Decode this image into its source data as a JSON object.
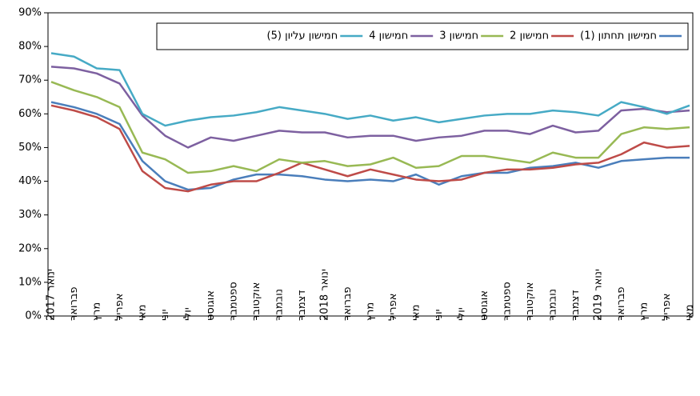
{
  "chart_data": {
    "type": "line",
    "categories": [
      "ינואר 2017",
      "פברואר",
      "מרץ",
      "אפריל",
      "מאי",
      "יוני",
      "יולי",
      "אוגוסט",
      "ספטמבר",
      "אוקטובר",
      "נובמבר",
      "דצמבר",
      "ינואר 2018",
      "פברואר",
      "מרץ",
      "אפריל",
      "מאי",
      "יוני",
      "יולי",
      "אוגוסט",
      "ספטמבר",
      "אוקטובר",
      "נובמבר",
      "דצמבר",
      "ינואר 2019",
      "פברואר",
      "מרץ",
      "אפריל",
      "מאי"
    ],
    "series": [
      {
        "name": "חמישון תחתון (1)",
        "color": "#4a7ebb",
        "values": [
          63.5,
          62,
          60,
          57,
          46,
          40,
          37.5,
          38,
          40.5,
          42,
          42,
          41.5,
          40.5,
          40,
          40.5,
          40,
          42,
          39,
          41.5,
          42.5,
          42.5,
          44,
          44.5,
          45.5,
          44,
          46,
          46.5,
          47,
          47
        ]
      },
      {
        "name": "חמישון 2",
        "color": "#be4b48",
        "values": [
          62.5,
          61,
          59,
          55.5,
          43,
          38,
          37,
          39,
          40,
          40,
          42.5,
          45.5,
          43.5,
          41.5,
          43.5,
          42,
          40.5,
          40,
          40.5,
          42.5,
          43.5,
          43.5,
          44,
          45,
          45.5,
          48,
          51.5,
          50,
          50.5
        ]
      },
      {
        "name": "חמישון 3",
        "color": "#98b954",
        "values": [
          69.5,
          67,
          65,
          62,
          48.5,
          46.5,
          42.5,
          43,
          44.5,
          43,
          46.5,
          45.5,
          46,
          44.5,
          45,
          47,
          44,
          44.5,
          47.5,
          47.5,
          46.5,
          45.5,
          48.5,
          47,
          47,
          54,
          56,
          55.5,
          56
        ]
      },
      {
        "name": "חמישון 4",
        "color": "#7d60a0",
        "values": [
          74,
          73.5,
          72,
          69,
          59.5,
          53.5,
          50,
          53,
          52,
          53.5,
          55,
          54.5,
          54.5,
          53,
          53.5,
          53.5,
          52,
          53,
          53.5,
          55,
          55,
          54,
          56.5,
          54.5,
          55,
          61,
          61.5,
          60.5,
          61
        ]
      },
      {
        "name": "חמישון עליון (5)",
        "color": "#46aac5",
        "values": [
          78,
          77,
          73.5,
          73,
          60,
          56.5,
          58,
          59,
          59.5,
          60.5,
          62,
          61,
          60,
          58.5,
          59.5,
          58,
          59,
          57.5,
          58.5,
          59.5,
          60,
          60,
          61,
          60.5,
          59.5,
          63.5,
          62,
          60,
          62.5
        ]
      }
    ],
    "ylim": [
      0,
      90
    ],
    "yticks": [
      {
        "value": 0,
        "label": "0%"
      },
      {
        "value": 10,
        "label": "10%"
      },
      {
        "value": 20,
        "label": "20%"
      },
      {
        "value": 30,
        "label": "30%"
      },
      {
        "value": 40,
        "label": "40%"
      },
      {
        "value": 50,
        "label": "50%"
      },
      {
        "value": 60,
        "label": "60%"
      },
      {
        "value": 70,
        "label": "70%"
      },
      {
        "value": 80,
        "label": "80%"
      },
      {
        "value": 90,
        "label": "90%"
      }
    ],
    "grid": false
  }
}
